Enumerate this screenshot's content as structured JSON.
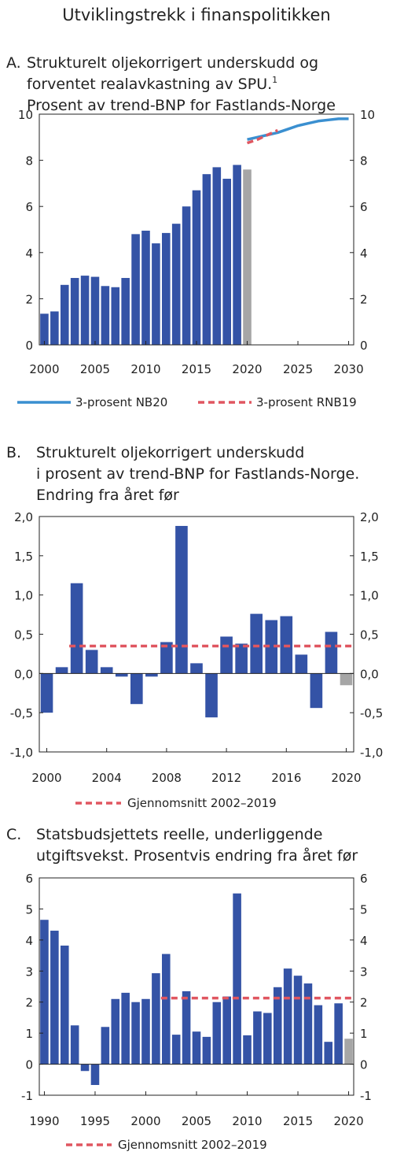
{
  "figure_title": "Utviklingstrekk i finanspolitikken",
  "colors": {
    "bar": "#3453a6",
    "bar_proj": "#a6a6a6",
    "line_nb20": "#3a8fd0",
    "line_rnb19": "#e05660",
    "avg": "#e05660",
    "axis": "#222222"
  },
  "chart_data": [
    {
      "type": "bar",
      "panel_letter": "A.",
      "title_lines": [
        "Strukturelt oljekorrigert underskudd og",
        "forventet realavkastning av SPU.",
        "Prosent av trend-BNP for Fastlands-Norge"
      ],
      "footnote_marker": "1",
      "x": [
        2000,
        2001,
        2002,
        2003,
        2004,
        2005,
        2006,
        2007,
        2008,
        2009,
        2010,
        2011,
        2012,
        2013,
        2014,
        2015,
        2016,
        2017,
        2018,
        2019,
        2020
      ],
      "values": [
        1.35,
        1.45,
        2.6,
        2.9,
        3.0,
        2.95,
        2.55,
        2.5,
        2.9,
        4.8,
        4.95,
        4.4,
        4.85,
        5.25,
        6.0,
        6.7,
        7.4,
        7.7,
        7.2,
        7.8,
        7.6
      ],
      "projected_from": 2020,
      "lines": [
        {
          "name": "3-prosent NB20",
          "style": "solid",
          "x": [
            2020,
            2021,
            2022,
            2023,
            2024,
            2025,
            2026,
            2027,
            2028,
            2029,
            2030
          ],
          "y": [
            8.9,
            9.0,
            9.1,
            9.2,
            9.35,
            9.5,
            9.6,
            9.7,
            9.75,
            9.8,
            9.8
          ]
        },
        {
          "name": "3-prosent RNB19",
          "style": "dashed",
          "x": [
            2020,
            2021,
            2022,
            2023
          ],
          "y": [
            8.75,
            8.9,
            9.1,
            9.3
          ]
        }
      ],
      "xlim": [
        1999.5,
        2030.5
      ],
      "ylim": [
        0,
        10
      ],
      "yticks": [
        "0",
        "2",
        "4",
        "6",
        "8",
        "10"
      ],
      "xticks": [
        "2000",
        "2005",
        "2010",
        "2015",
        "2020",
        "2025",
        "2030"
      ],
      "legend": [
        "3-prosent NB20",
        "3-prosent RNB19"
      ]
    },
    {
      "type": "bar",
      "panel_letter": "B.",
      "title_lines": [
        "Strukturelt oljekorrigert underskudd",
        "i prosent av trend-BNP for Fastlands-Norge.",
        "Endring fra året før"
      ],
      "x": [
        2000,
        2001,
        2002,
        2003,
        2004,
        2005,
        2006,
        2007,
        2008,
        2009,
        2010,
        2011,
        2012,
        2013,
        2014,
        2015,
        2016,
        2017,
        2018,
        2019,
        2020
      ],
      "values": [
        -0.5,
        0.08,
        1.15,
        0.3,
        0.08,
        -0.04,
        -0.39,
        -0.04,
        0.4,
        1.88,
        0.13,
        -0.56,
        0.47,
        0.38,
        0.76,
        0.68,
        0.73,
        0.24,
        -0.44,
        0.53,
        -0.15
      ],
      "projected_from": 2020,
      "average": {
        "name": "Gjennomsnitt 2002–2019",
        "value": 0.35,
        "from": 2002,
        "to": 2020
      },
      "xlim": [
        1999.5,
        2020.5
      ],
      "ylim": [
        -1.0,
        2.0
      ],
      "yticks": [
        "-1,0",
        "-0,5",
        "0,0",
        "0,5",
        "1,0",
        "1,5",
        "2,0"
      ],
      "xticks": [
        "2000",
        "2004",
        "2008",
        "2012",
        "2016",
        "2020"
      ],
      "legend": [
        "Gjennomsnitt 2002–2019"
      ]
    },
    {
      "type": "bar",
      "panel_letter": "C.",
      "title_lines": [
        "Statsbudsjettets reelle, underliggende",
        "utgiftsvekst. Prosentvis endring fra året før"
      ],
      "x": [
        1990,
        1991,
        1992,
        1993,
        1994,
        1995,
        1996,
        1997,
        1998,
        1999,
        2000,
        2001,
        2002,
        2003,
        2004,
        2005,
        2006,
        2007,
        2008,
        2009,
        2010,
        2011,
        2012,
        2013,
        2014,
        2015,
        2016,
        2017,
        2018,
        2019,
        2020
      ],
      "values": [
        4.65,
        4.3,
        3.82,
        1.25,
        -0.22,
        -0.67,
        1.2,
        2.1,
        2.3,
        2.0,
        2.1,
        2.93,
        3.55,
        0.95,
        2.35,
        1.05,
        0.88,
        2.0,
        2.18,
        5.5,
        0.93,
        1.7,
        1.65,
        2.48,
        3.08,
        2.85,
        2.6,
        1.9,
        0.72,
        1.96,
        0.82
      ],
      "projected_from": 2020,
      "average": {
        "name": "Gjennomsnitt 2002–2019",
        "value": 2.13,
        "from": 2002,
        "to": 2020
      },
      "xlim": [
        1989.5,
        2020.5
      ],
      "ylim": [
        -1,
        6
      ],
      "yticks": [
        "-1",
        "0",
        "1",
        "2",
        "3",
        "4",
        "5",
        "6"
      ],
      "xticks": [
        "1990",
        "1995",
        "2000",
        "2005",
        "2010",
        "2015",
        "2020"
      ],
      "legend": [
        "Gjennomsnitt 2002–2019"
      ]
    }
  ]
}
